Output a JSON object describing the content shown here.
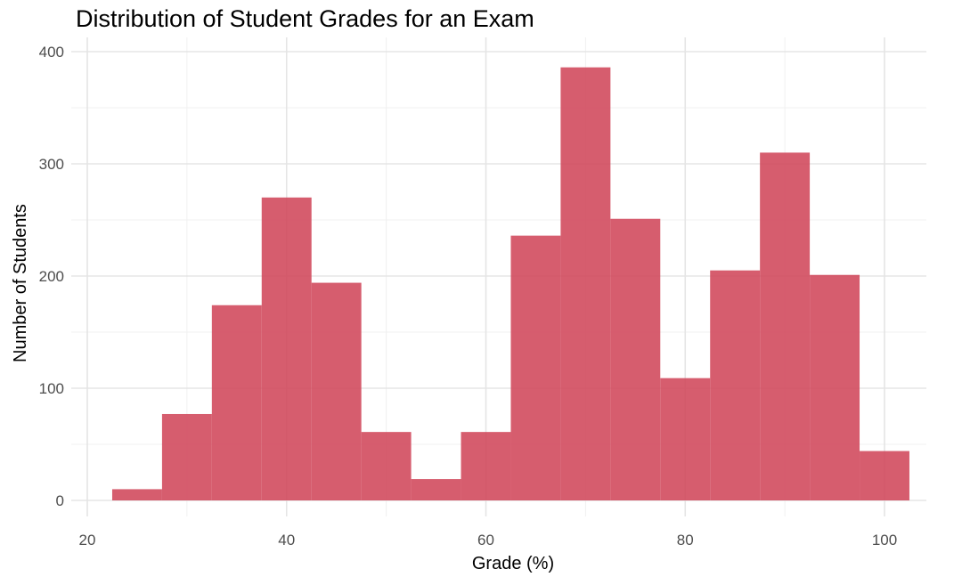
{
  "chart_data": {
    "type": "bar",
    "title": "Distribution of Student Grades for an Exam",
    "xlabel": "Grade (%)",
    "ylabel": "Number of Students",
    "xlim": [
      20,
      105
    ],
    "ylim": [
      0,
      400
    ],
    "xticks": [
      20,
      40,
      60,
      80,
      100
    ],
    "yticks": [
      0,
      100,
      200,
      300,
      400
    ],
    "grid": true,
    "bar_color": "#d0475a",
    "bins": [
      {
        "start": 22.5,
        "end": 27.5,
        "count": 10
      },
      {
        "start": 27.5,
        "end": 32.5,
        "count": 77
      },
      {
        "start": 32.5,
        "end": 37.5,
        "count": 174
      },
      {
        "start": 37.5,
        "end": 42.5,
        "count": 270
      },
      {
        "start": 42.5,
        "end": 47.5,
        "count": 194
      },
      {
        "start": 47.5,
        "end": 52.5,
        "count": 61
      },
      {
        "start": 52.5,
        "end": 57.5,
        "count": 19
      },
      {
        "start": 57.5,
        "end": 62.5,
        "count": 61
      },
      {
        "start": 62.5,
        "end": 67.5,
        "count": 236
      },
      {
        "start": 67.5,
        "end": 72.5,
        "count": 386
      },
      {
        "start": 72.5,
        "end": 77.5,
        "count": 251
      },
      {
        "start": 77.5,
        "end": 82.5,
        "count": 109
      },
      {
        "start": 82.5,
        "end": 87.5,
        "count": 205
      },
      {
        "start": 87.5,
        "end": 92.5,
        "count": 310
      },
      {
        "start": 92.5,
        "end": 97.5,
        "count": 201
      },
      {
        "start": 97.5,
        "end": 102.5,
        "count": 44
      }
    ]
  }
}
